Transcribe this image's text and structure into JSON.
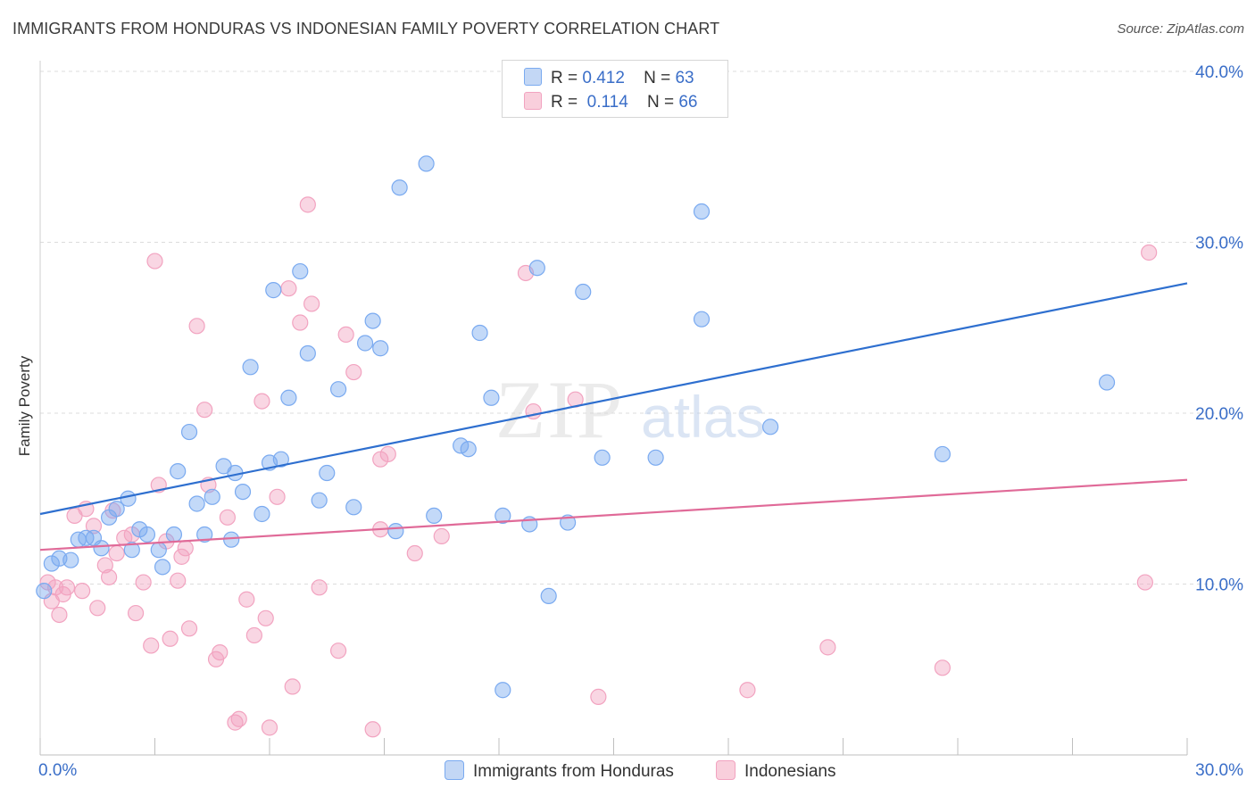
{
  "title": "IMMIGRANTS FROM HONDURAS VS INDONESIAN FAMILY POVERTY CORRELATION CHART",
  "source": "Source: ZipAtlas.com",
  "watermark": {
    "zip": "ZIP",
    "atlas": "atlas"
  },
  "legend_top": {
    "rows": [
      {
        "r_label": "R =",
        "r_value": "0.412",
        "n_label": "N =",
        "n_value": "63"
      },
      {
        "r_label": "R =",
        "r_value": "0.114",
        "n_label": "N =",
        "n_value": "66"
      }
    ]
  },
  "chart_data": {
    "type": "scatter",
    "title": "IMMIGRANTS FROM HONDURAS VS INDONESIAN FAMILY POVERTY CORRELATION CHART",
    "xlabel": "",
    "ylabel": "Family Poverty",
    "xlim": [
      0,
      30
    ],
    "ylim": [
      0,
      40
    ],
    "x_tick_labels": [
      "0.0%",
      "30.0%"
    ],
    "y_tick_labels": [
      "10.0%",
      "20.0%",
      "30.0%",
      "40.0%"
    ],
    "y_ticks": [
      10,
      20,
      30,
      40
    ],
    "grid": "horizontal dashed",
    "legend_position": "top-center and bottom",
    "colors": {
      "honduras": "#7aaaf0",
      "honduras_line": "#2e6fcf",
      "indonesians": "#f2a3c0",
      "indonesians_line": "#e06a98",
      "tick_label": "#3a6ec8"
    },
    "series": [
      {
        "name": "Immigrants from Honduras",
        "r": 0.412,
        "n": 63,
        "trend": {
          "x": [
            0,
            30
          ],
          "y": [
            14.1,
            27.6
          ]
        },
        "points": [
          [
            0.1,
            9.6
          ],
          [
            0.3,
            11.2
          ],
          [
            0.5,
            11.5
          ],
          [
            0.8,
            11.4
          ],
          [
            1.0,
            12.6
          ],
          [
            1.2,
            12.7
          ],
          [
            1.4,
            12.7
          ],
          [
            1.6,
            12.1
          ],
          [
            1.8,
            13.9
          ],
          [
            2.0,
            14.4
          ],
          [
            2.3,
            15.0
          ],
          [
            2.4,
            12.0
          ],
          [
            2.6,
            13.2
          ],
          [
            2.8,
            12.9
          ],
          [
            3.1,
            12.0
          ],
          [
            3.2,
            11.0
          ],
          [
            3.5,
            12.9
          ],
          [
            3.6,
            16.6
          ],
          [
            3.9,
            18.9
          ],
          [
            4.1,
            14.7
          ],
          [
            4.3,
            12.9
          ],
          [
            4.5,
            15.1
          ],
          [
            4.8,
            16.9
          ],
          [
            5.0,
            12.6
          ],
          [
            5.1,
            16.5
          ],
          [
            5.3,
            15.4
          ],
          [
            5.5,
            22.7
          ],
          [
            5.8,
            14.1
          ],
          [
            6.0,
            17.1
          ],
          [
            6.1,
            27.2
          ],
          [
            6.3,
            17.3
          ],
          [
            6.5,
            20.9
          ],
          [
            6.8,
            28.3
          ],
          [
            7.0,
            23.5
          ],
          [
            7.3,
            14.9
          ],
          [
            7.5,
            16.5
          ],
          [
            7.8,
            21.4
          ],
          [
            8.2,
            14.5
          ],
          [
            8.5,
            24.1
          ],
          [
            8.7,
            25.4
          ],
          [
            8.9,
            23.8
          ],
          [
            9.3,
            13.1
          ],
          [
            9.4,
            33.2
          ],
          [
            10.1,
            34.6
          ],
          [
            10.3,
            14.0
          ],
          [
            11.0,
            18.1
          ],
          [
            11.2,
            17.9
          ],
          [
            11.5,
            24.7
          ],
          [
            11.8,
            20.9
          ],
          [
            12.1,
            14.0
          ],
          [
            12.1,
            3.8
          ],
          [
            12.8,
            13.5
          ],
          [
            13.0,
            28.5
          ],
          [
            13.3,
            9.3
          ],
          [
            13.8,
            13.6
          ],
          [
            14.2,
            27.1
          ],
          [
            14.7,
            17.4
          ],
          [
            16.1,
            17.4
          ],
          [
            17.3,
            31.8
          ],
          [
            17.3,
            25.5
          ],
          [
            19.1,
            19.2
          ],
          [
            23.6,
            17.6
          ],
          [
            27.9,
            21.8
          ]
        ]
      },
      {
        "name": "Indonesians",
        "r": 0.114,
        "n": 66,
        "trend": {
          "x": [
            0,
            30
          ],
          "y": [
            12.0,
            16.1
          ]
        },
        "points": [
          [
            0.2,
            10.1
          ],
          [
            0.3,
            9.0
          ],
          [
            0.5,
            8.2
          ],
          [
            0.6,
            9.4
          ],
          [
            0.7,
            9.8
          ],
          [
            0.9,
            14.0
          ],
          [
            1.1,
            9.6
          ],
          [
            1.2,
            14.4
          ],
          [
            1.4,
            13.4
          ],
          [
            1.5,
            8.6
          ],
          [
            1.7,
            11.1
          ],
          [
            1.8,
            10.4
          ],
          [
            1.9,
            14.3
          ],
          [
            2.0,
            11.8
          ],
          [
            2.2,
            12.7
          ],
          [
            2.4,
            12.9
          ],
          [
            2.5,
            8.3
          ],
          [
            2.7,
            10.1
          ],
          [
            2.9,
            6.4
          ],
          [
            3.0,
            28.9
          ],
          [
            3.1,
            15.8
          ],
          [
            3.3,
            12.5
          ],
          [
            3.4,
            6.8
          ],
          [
            3.6,
            10.2
          ],
          [
            3.7,
            11.6
          ],
          [
            3.8,
            12.1
          ],
          [
            3.9,
            7.4
          ],
          [
            4.1,
            25.1
          ],
          [
            4.3,
            20.2
          ],
          [
            4.4,
            15.8
          ],
          [
            4.6,
            5.6
          ],
          [
            4.7,
            6.0
          ],
          [
            4.9,
            13.9
          ],
          [
            5.1,
            1.9
          ],
          [
            5.2,
            2.1
          ],
          [
            5.4,
            9.1
          ],
          [
            5.6,
            7.0
          ],
          [
            5.8,
            20.7
          ],
          [
            5.9,
            8.0
          ],
          [
            6.0,
            1.6
          ],
          [
            6.2,
            15.1
          ],
          [
            6.5,
            27.3
          ],
          [
            6.6,
            4.0
          ],
          [
            6.8,
            25.3
          ],
          [
            7.0,
            32.2
          ],
          [
            7.1,
            26.4
          ],
          [
            7.3,
            9.8
          ],
          [
            7.8,
            6.1
          ],
          [
            8.0,
            24.6
          ],
          [
            8.2,
            22.4
          ],
          [
            8.7,
            1.5
          ],
          [
            8.9,
            13.2
          ],
          [
            8.9,
            17.3
          ],
          [
            9.1,
            17.6
          ],
          [
            9.8,
            11.8
          ],
          [
            10.5,
            12.8
          ],
          [
            12.7,
            28.2
          ],
          [
            12.9,
            20.1
          ],
          [
            14.0,
            20.8
          ],
          [
            14.6,
            3.4
          ],
          [
            18.5,
            3.8
          ],
          [
            20.6,
            6.3
          ],
          [
            23.6,
            5.1
          ],
          [
            29.0,
            29.4
          ],
          [
            28.9,
            10.1
          ],
          [
            0.4,
            9.8
          ]
        ]
      }
    ]
  },
  "legend_bottom": [
    {
      "label": "Immigrants from Honduras"
    },
    {
      "label": "Indonesians"
    }
  ]
}
